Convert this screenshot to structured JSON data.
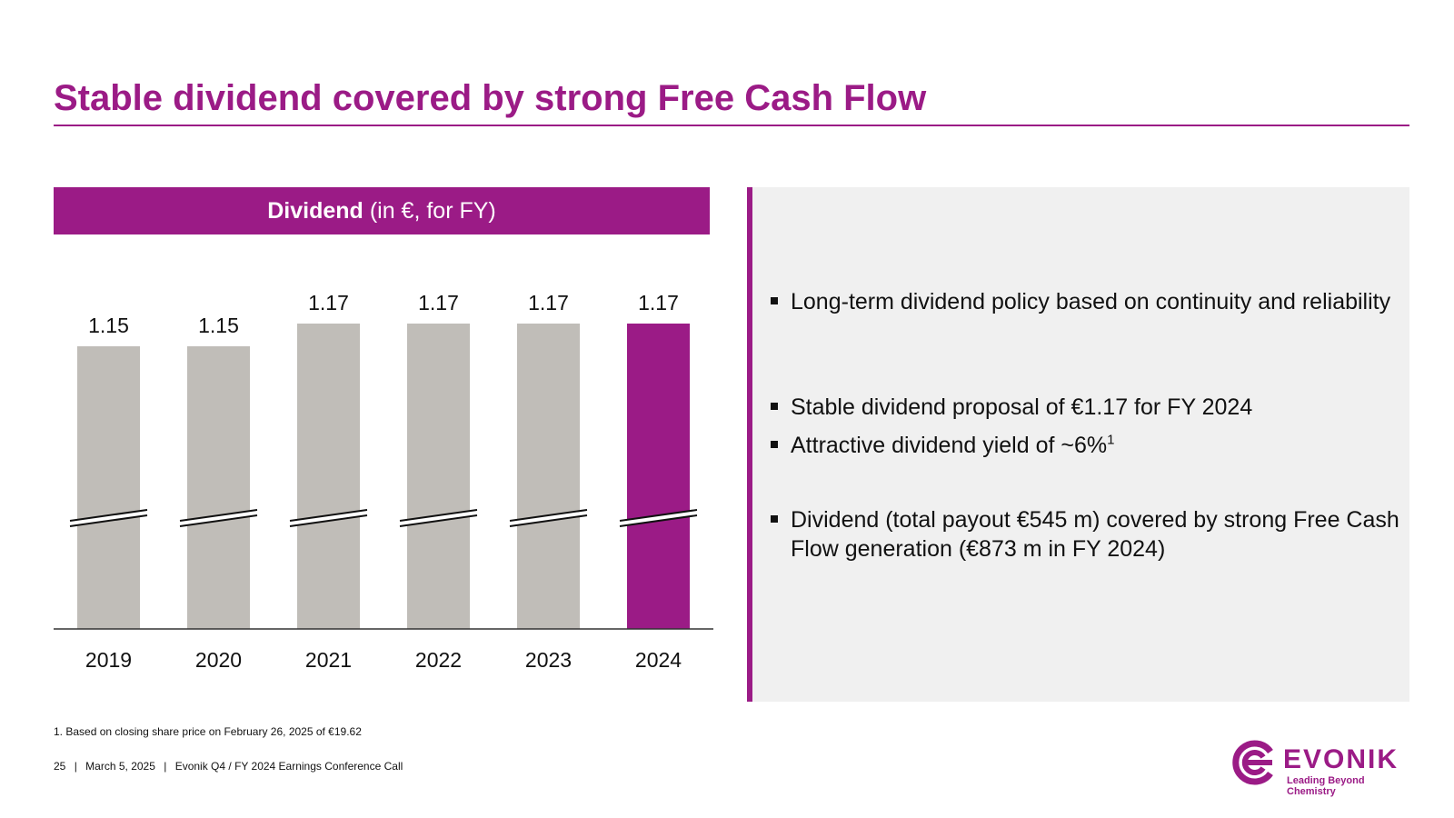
{
  "slide": {
    "title": "Stable dividend covered by strong Free Cash Flow",
    "chart_header_bold": "Dividend",
    "chart_header_rest": "(in €, for FY)"
  },
  "bullets": [
    {
      "text": "Long-term dividend policy based on continuity and reliability",
      "sup": ""
    },
    {
      "text": "Stable dividend proposal of €1.17 for FY 2024",
      "sup": ""
    },
    {
      "text": "Attractive dividend yield of ~6%",
      "sup": "1"
    },
    {
      "text": "Dividend (total payout €545 m) covered by strong Free Cash Flow generation (€873 m in FY 2024)",
      "sup": ""
    }
  ],
  "footnote": "1. Based on closing share price on February 26, 2025 of €19.62",
  "footer": {
    "page": "25",
    "separator": "|",
    "date": "March 5, 2025",
    "event": "Evonik Q4 / FY 2024 Earnings Conference Call"
  },
  "logo": {
    "wordmark": "EVONIK",
    "tagline": "Leading Beyond Chemistry"
  },
  "colors": {
    "accent": "#9b1b86",
    "bar_default": "#c0bdb8",
    "panel_bg": "#f0f0f0"
  },
  "chart_data": {
    "type": "bar",
    "title": "",
    "xlabel": "",
    "ylabel": "",
    "categories": [
      "2019",
      "2020",
      "2021",
      "2022",
      "2023",
      "2024"
    ],
    "values": [
      1.15,
      1.15,
      1.17,
      1.17,
      1.17,
      1.17
    ],
    "highlight": [
      false,
      false,
      false,
      false,
      false,
      true
    ],
    "axis_break": true,
    "grid": false
  }
}
